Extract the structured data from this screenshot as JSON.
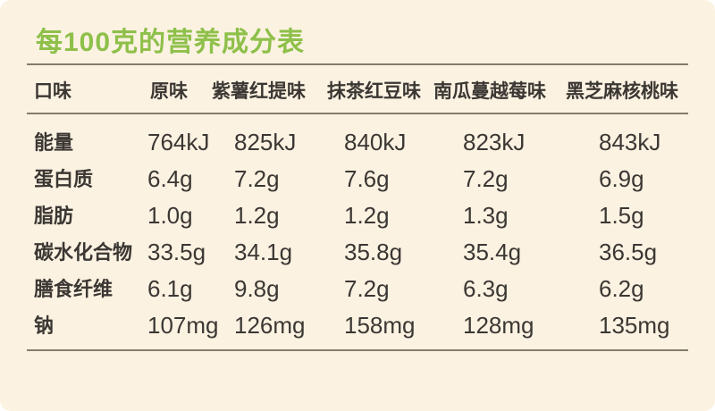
{
  "colors": {
    "background": "#fcf2e2",
    "title_green": "#8ec04a",
    "text": "#3b3733",
    "divider": "#6f6858"
  },
  "chart_data": {
    "type": "table",
    "title": "每100克的营养成分表",
    "columns": [
      "口味",
      "原味",
      "紫薯红提味",
      "抹茶红豆味",
      "南瓜蔓越莓味",
      "黑芝麻核桃味"
    ],
    "rows": [
      [
        "能量",
        "764kJ",
        "825kJ",
        "840kJ",
        "823kJ",
        "843kJ"
      ],
      [
        "蛋白质",
        "6.4g",
        "7.2g",
        "7.6g",
        "7.2g",
        "6.9g"
      ],
      [
        "脂肪",
        "1.0g",
        "1.2g",
        "1.2g",
        "1.3g",
        "1.5g"
      ],
      [
        "碳水化合物",
        "33.5g",
        "34.1g",
        "35.8g",
        "35.4g",
        "36.5g"
      ],
      [
        "膳食纤维",
        "6.1g",
        "9.8g",
        "7.2g",
        "6.3g",
        "6.2g"
      ],
      [
        "钠",
        "107mg",
        "126mg",
        "158mg",
        "128mg",
        "135mg"
      ]
    ]
  }
}
